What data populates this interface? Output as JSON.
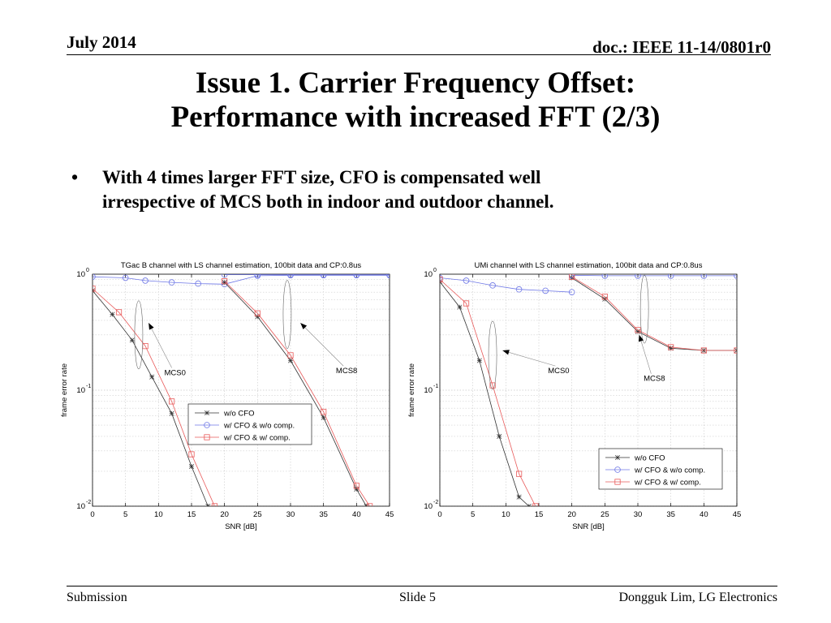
{
  "header": {
    "date": "July 2014",
    "doc": "doc.: IEEE 11-14/0801r0"
  },
  "title": {
    "line1": "Issue 1. Carrier Frequency Offset:",
    "line2": "Performance with increased FFT (2/3)"
  },
  "bullets": [
    {
      "symbol": "•",
      "line1": "With 4 times larger FFT size, CFO is compensated well",
      "line2": "irrespective of MCS both in indoor and outdoor channel."
    }
  ],
  "footer": {
    "left": "Submission",
    "center": "Slide 5",
    "right": "Dongguk Lim, LG Electronics"
  },
  "chart_data": [
    {
      "type": "line",
      "title": "TGac B channel with LS channel estimation, 100bit data and CP:0.8us",
      "xlabel": "SNR [dB]",
      "ylabel": "frame error rate",
      "xlim": [
        0,
        45
      ],
      "ylim": [
        0.01,
        1
      ],
      "yscale": "log",
      "xticks": [
        0,
        5,
        10,
        15,
        20,
        25,
        30,
        35,
        40,
        45
      ],
      "ytick_labels": [
        {
          "base": "10",
          "exp": "0",
          "value": 1
        },
        {
          "base": "10",
          "exp": "-1",
          "value": 0.1
        },
        {
          "base": "10",
          "exp": "-2",
          "value": 0.01
        }
      ],
      "grid": true,
      "legend_position": "center-right",
      "legend": [
        "w/o CFO",
        "w/ CFO & w/o comp.",
        "w/ CFO & w/ comp."
      ],
      "annotations": [
        {
          "text": "MCS0",
          "x": 12.5,
          "y": 0.135,
          "arrow_to": [
            8.5,
            0.38
          ],
          "ellipse": [
            7,
            0.3
          ]
        },
        {
          "text": "MCS8",
          "x": 38.5,
          "y": 0.14,
          "arrow_to": [
            31.5,
            0.38
          ],
          "ellipse": [
            29.5,
            0.45
          ]
        }
      ],
      "series": [
        {
          "name": "w/o CFO",
          "group": "MCS0",
          "color": "#333333",
          "marker": "star",
          "x": [
            0,
            3,
            6,
            9,
            12,
            15,
            17.5
          ],
          "y": [
            0.72,
            0.45,
            0.27,
            0.13,
            0.063,
            0.022,
            0.01
          ]
        },
        {
          "name": "w/ CFO & w/o comp.",
          "group": "MCS0",
          "color": "#6f78e6",
          "marker": "circle",
          "x": [
            0,
            5,
            8,
            12,
            16,
            20,
            25,
            30,
            35,
            40,
            45
          ],
          "y": [
            0.95,
            0.93,
            0.88,
            0.85,
            0.83,
            0.82,
            0.97,
            0.98,
            0.98,
            0.98,
            0.98
          ]
        },
        {
          "name": "w/ CFO & w/ comp.",
          "group": "MCS0",
          "color": "#e85a5a",
          "marker": "square",
          "x": [
            0,
            4,
            8,
            12,
            15,
            18.5
          ],
          "y": [
            0.75,
            0.47,
            0.24,
            0.08,
            0.028,
            0.01
          ]
        },
        {
          "name": "w/o CFO",
          "group": "MCS8",
          "color": "#333333",
          "marker": "star",
          "x": [
            20,
            25,
            30,
            35,
            40,
            41.5
          ],
          "y": [
            0.85,
            0.43,
            0.18,
            0.058,
            0.014,
            0.01
          ]
        },
        {
          "name": "w/ CFO & w/o comp.",
          "group": "MCS8",
          "color": "#6f78e6",
          "marker": "circle",
          "x": [
            20,
            25,
            30,
            35,
            40,
            45
          ],
          "y": [
            0.99,
            0.99,
            0.99,
            0.99,
            0.99,
            0.99
          ]
        },
        {
          "name": "w/ CFO & w/ comp.",
          "group": "MCS8",
          "color": "#e85a5a",
          "marker": "square",
          "x": [
            20,
            25,
            30,
            35,
            40,
            42
          ],
          "y": [
            0.87,
            0.46,
            0.2,
            0.065,
            0.015,
            0.01
          ]
        }
      ]
    },
    {
      "type": "line",
      "title": "UMi channel with LS channel estimation, 100bit data and CP:0.8us",
      "xlabel": "SNR [dB]",
      "ylabel": "frame error rate",
      "xlim": [
        0,
        45
      ],
      "ylim": [
        0.01,
        1
      ],
      "yscale": "log",
      "xticks": [
        0,
        5,
        10,
        15,
        20,
        25,
        30,
        35,
        40,
        45
      ],
      "ytick_labels": [
        {
          "base": "10",
          "exp": "0",
          "value": 1
        },
        {
          "base": "10",
          "exp": "-1",
          "value": 0.1
        },
        {
          "base": "10",
          "exp": "-2",
          "value": 0.01
        }
      ],
      "grid": true,
      "legend_position": "bottom-right",
      "legend": [
        "w/o CFO",
        "w/ CFO & w/o comp.",
        "w/ CFO & w/ comp."
      ],
      "annotations": [
        {
          "text": "MCS0",
          "x": 18,
          "y": 0.14,
          "arrow_to": [
            9.5,
            0.22
          ],
          "ellipse": [
            8,
            0.2
          ]
        },
        {
          "text": "MCS8",
          "x": 32.5,
          "y": 0.12,
          "arrow_to": [
            30.2,
            0.3
          ],
          "ellipse": [
            31,
            0.5
          ]
        }
      ],
      "series": [
        {
          "name": "w/o CFO",
          "group": "MCS0",
          "color": "#333333",
          "marker": "star",
          "x": [
            0,
            3,
            6,
            9,
            12,
            13.5
          ],
          "y": [
            0.86,
            0.52,
            0.18,
            0.04,
            0.012,
            0.01
          ]
        },
        {
          "name": "w/ CFO & w/o comp.",
          "group": "MCS0",
          "color": "#6f78e6",
          "marker": "circle",
          "x": [
            0,
            4,
            8,
            12,
            16,
            20
          ],
          "y": [
            0.93,
            0.88,
            0.8,
            0.74,
            0.72,
            0.7
          ]
        },
        {
          "name": "w/ CFO & w/ comp.",
          "group": "MCS0",
          "color": "#e85a5a",
          "marker": "square",
          "x": [
            0,
            4,
            8,
            12,
            14.5
          ],
          "y": [
            0.9,
            0.56,
            0.11,
            0.019,
            0.01
          ]
        },
        {
          "name": "w/o CFO",
          "group": "MCS8",
          "color": "#333333",
          "marker": "star",
          "x": [
            20,
            25,
            30,
            35,
            40,
            45
          ],
          "y": [
            0.93,
            0.61,
            0.32,
            0.23,
            0.22,
            0.22
          ]
        },
        {
          "name": "w/ CFO & w/o comp.",
          "group": "MCS8",
          "color": "#6f78e6",
          "marker": "circle",
          "x": [
            20,
            25,
            30,
            35,
            40,
            45
          ],
          "y": [
            0.98,
            0.97,
            0.97,
            0.97,
            0.97,
            0.97
          ]
        },
        {
          "name": "w/ CFO & w/ comp.",
          "group": "MCS8",
          "color": "#e85a5a",
          "marker": "square",
          "x": [
            20,
            25,
            30,
            35,
            40,
            45
          ],
          "y": [
            0.95,
            0.64,
            0.33,
            0.235,
            0.22,
            0.22
          ]
        }
      ]
    }
  ]
}
